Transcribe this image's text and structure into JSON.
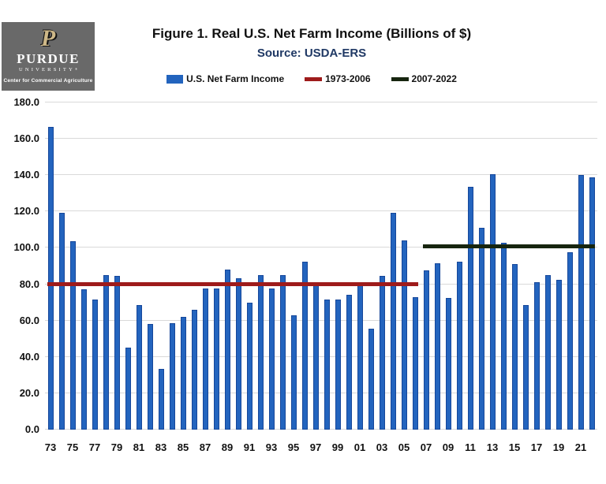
{
  "header": {
    "logo": {
      "p_glyph": "P",
      "wordmark": "PURDUE",
      "sub_wordmark": "UNIVERSITY",
      "trademark": "®",
      "dept": "Center for Commercial Agriculture"
    },
    "title": "Figure 1. Real U.S. Net Farm Income (Billions of $)",
    "subtitle": "Source:  USDA-ERS"
  },
  "legend": [
    {
      "label": "U.S. Net Farm Income",
      "swatch": "bar",
      "color": "#2364be"
    },
    {
      "label": "1973-2006",
      "swatch": "line",
      "color": "#9e1b1b"
    },
    {
      "label": "2007-2022",
      "swatch": "line",
      "color": "#17250f"
    }
  ],
  "chart_data": {
    "type": "bar",
    "title": "Figure 1. Real U.S. Net Farm Income (Billions of $)",
    "subtitle": "Source:  USDA-ERS",
    "series_name": "U.S. Net Farm Income",
    "categories": [
      1973,
      1974,
      1975,
      1976,
      1977,
      1978,
      1979,
      1980,
      1981,
      1982,
      1983,
      1984,
      1985,
      1986,
      1987,
      1988,
      1989,
      1990,
      1991,
      1992,
      1993,
      1994,
      1995,
      1996,
      1997,
      1998,
      1999,
      2000,
      2001,
      2002,
      2003,
      2004,
      2005,
      2006,
      2007,
      2008,
      2009,
      2010,
      2011,
      2012,
      2013,
      2014,
      2015,
      2016,
      2017,
      2018,
      2019,
      2020,
      2021,
      2022
    ],
    "values": [
      166.5,
      119.5,
      103.5,
      77,
      71.5,
      85,
      84.5,
      45,
      68.5,
      58,
      33.5,
      58.5,
      62,
      66,
      77.5,
      77.5,
      88,
      83.5,
      70,
      85,
      77.5,
      85,
      63,
      92.5,
      79.5,
      71.5,
      71.5,
      74,
      79.5,
      55.5,
      84.5,
      119.5,
      104,
      73,
      87.5,
      91.5,
      72.5,
      92.5,
      133.5,
      111,
      140.5,
      103,
      91,
      68.5,
      81,
      85,
      82.5,
      97.5,
      140,
      139
    ],
    "x_tick_labels": [
      "73",
      "75",
      "77",
      "79",
      "81",
      "83",
      "85",
      "87",
      "89",
      "91",
      "93",
      "95",
      "97",
      "99",
      "01",
      "03",
      "05",
      "07",
      "09",
      "11",
      "13",
      "15",
      "17",
      "19",
      "21"
    ],
    "ylim": [
      0,
      180
    ],
    "ytick_interval": 20,
    "ytick_labels": [
      "0.0",
      "20.0",
      "40.0",
      "60.0",
      "80.0",
      "100.0",
      "120.0",
      "140.0",
      "160.0",
      "180.0"
    ],
    "grid": "horizontal",
    "legend_position": "top",
    "bar_color": "#2364be",
    "reference_lines": [
      {
        "name": "1973-2006",
        "value": 80,
        "color": "#9e1b1b",
        "span_years": [
          1973,
          2006
        ]
      },
      {
        "name": "2007-2022",
        "value": 101,
        "color": "#17250f",
        "span_years": [
          2007,
          2022
        ]
      }
    ]
  }
}
